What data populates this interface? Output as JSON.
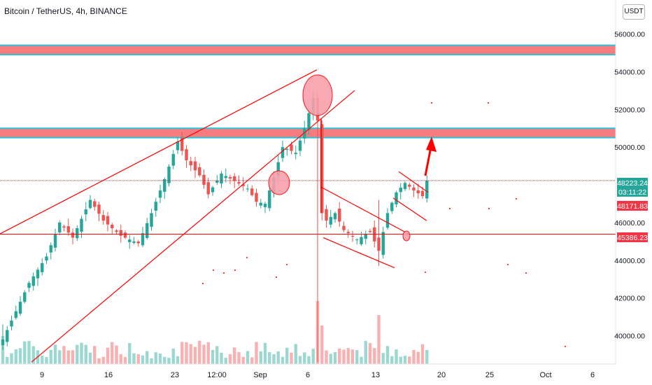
{
  "header": {
    "title": "Bitcoin / TetherUS, 4h, BINANCE"
  },
  "currency_button": {
    "label": "USDT"
  },
  "price_tags": {
    "last_price": "48223.24",
    "countdown": "03:11:22",
    "prev_close": "48171.83",
    "support": "45386.23"
  },
  "colors": {
    "up": "#26a69a",
    "down": "#ef5350",
    "drawing": "#ff0000",
    "zone_fill": "#f77c80",
    "zone_border": "#26c6da",
    "circle_fill": "#f8a0ab",
    "last_tag": "#26a69a",
    "red_tag": "#f23645"
  },
  "chart_data": {
    "type": "candlestick",
    "symbol": "Bitcoin / TetherUS",
    "interval": "4h",
    "exchange": "BINANCE",
    "y_axis": {
      "ylim": [
        38500,
        57800
      ],
      "ticks": [
        "56000.00",
        "54000.00",
        "52000.00",
        "50000.00",
        "46000.00",
        "44000.00",
        "42000.00",
        "40000.00"
      ]
    },
    "x_axis": {
      "ticks": [
        "9",
        "16",
        "23",
        "12:00",
        "Sep",
        "6",
        "13",
        "20",
        "25",
        "Oct",
        "6"
      ]
    },
    "price_path": {
      "points": [
        [
          0,
          39800
        ],
        [
          6,
          42800
        ],
        [
          10,
          44200
        ],
        [
          13,
          46000
        ],
        [
          16,
          45200
        ],
        [
          20,
          47200
        ],
        [
          23,
          46100
        ],
        [
          27,
          45300
        ],
        [
          31,
          44900
        ],
        [
          34,
          46500
        ],
        [
          37,
          48300
        ],
        [
          40,
          50300
        ],
        [
          42,
          49300
        ],
        [
          45,
          48500
        ],
        [
          47,
          47500
        ],
        [
          50,
          48600
        ],
        [
          53,
          48200
        ],
        [
          56,
          47800
        ],
        [
          58,
          47100
        ],
        [
          60,
          47000
        ],
        [
          62,
          48400
        ],
        [
          64,
          50000
        ],
        [
          67,
          49700
        ],
        [
          69,
          51000
        ],
        [
          71,
          52600
        ],
        [
          72,
          51400
        ],
        [
          72.5,
          46700
        ],
        [
          74,
          46100
        ],
        [
          76,
          46500
        ],
        [
          78,
          45600
        ],
        [
          81,
          45100
        ],
        [
          84,
          45500
        ],
        [
          86,
          44500
        ],
        [
          88,
          46500
        ],
        [
          90,
          47600
        ],
        [
          92,
          48100
        ],
        [
          94,
          47700
        ],
        [
          96,
          47400
        ],
        [
          97,
          48223.24
        ]
      ],
      "candle_count": 97
    },
    "horizontal_zones": [
      {
        "low": 54900,
        "high": 55400
      },
      {
        "low": 50500,
        "high": 51000
      }
    ],
    "horizontal_lines": [
      48223.24,
      45386.23
    ],
    "annotations": [
      "rising wedge",
      "descending channel",
      "bull flag breakout arrow",
      "circle highlights"
    ]
  }
}
